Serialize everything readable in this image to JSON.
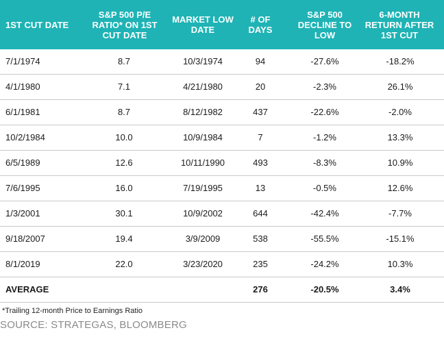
{
  "headers": [
    "1ST CUT DATE",
    "S&P 500 P/E RATIO* ON 1ST CUT DATE",
    "MARKET LOW DATE",
    "# OF DAYS",
    "S&P 500 DECLINE TO LOW",
    "6-MONTH RETURN AFTER 1ST CUT"
  ],
  "header_lines": [
    [
      "1ST CUT DATE"
    ],
    [
      "S&P 500 P/E",
      "RATIO* ON 1ST",
      "CUT DATE"
    ],
    [
      "MARKET LOW",
      "DATE"
    ],
    [
      "# OF",
      "DAYS"
    ],
    [
      "S&P 500",
      "DECLINE TO",
      "LOW"
    ],
    [
      "6-MONTH",
      "RETURN AFTER",
      "1ST CUT"
    ]
  ],
  "rows": [
    [
      "7/1/1974",
      "8.7",
      "10/3/1974",
      "94",
      "-27.6%",
      "-18.2%"
    ],
    [
      "4/1/1980",
      "7.1",
      "4/21/1980",
      "20",
      "-2.3%",
      "26.1%"
    ],
    [
      "6/1/1981",
      "8.7",
      "8/12/1982",
      "437",
      "-22.6%",
      "-2.0%"
    ],
    [
      "10/2/1984",
      "10.0",
      "10/9/1984",
      "7",
      "-1.2%",
      "13.3%"
    ],
    [
      "6/5/1989",
      "12.6",
      "10/11/1990",
      "493",
      "-8.3%",
      "10.9%"
    ],
    [
      "7/6/1995",
      "16.0",
      "7/19/1995",
      "13",
      "-0.5%",
      "12.6%"
    ],
    [
      "1/3/2001",
      "30.1",
      "10/9/2002",
      "644",
      "-42.4%",
      "-7.7%"
    ],
    [
      "9/18/2007",
      "19.4",
      "3/9/2009",
      "538",
      "-55.5%",
      "-15.1%"
    ],
    [
      "8/1/2019",
      "22.0",
      "3/23/2020",
      "235",
      "-24.2%",
      "10.3%"
    ]
  ],
  "average": [
    "AVERAGE",
    "",
    "",
    "276",
    "-20.5%",
    "3.4%"
  ],
  "footnote": "*Trailing 12-month Price to Earnings Ratio",
  "source": "SOURCE: STRATEGAS, BLOOMBERG",
  "colors": {
    "header_bg": "#1fb3b5",
    "header_text": "#ffffff",
    "source_text": "#8a8a8a"
  }
}
